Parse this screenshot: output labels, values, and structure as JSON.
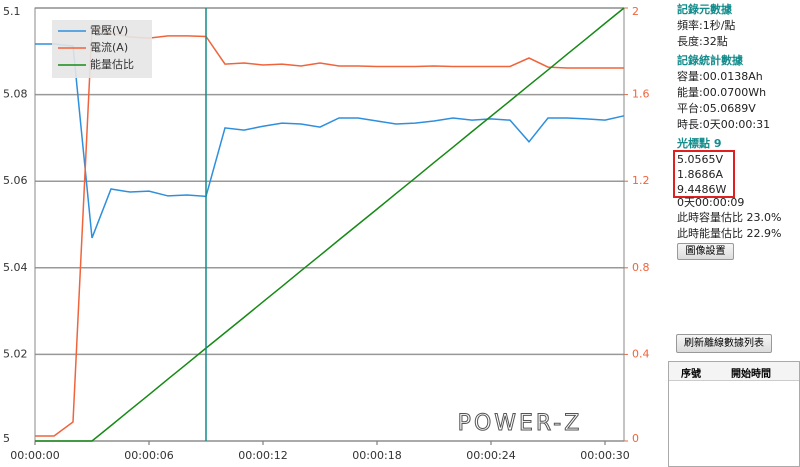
{
  "chart_data": {
    "type": "line",
    "x": [
      0,
      1,
      2,
      3,
      4,
      5,
      6,
      7,
      8,
      9,
      10,
      11,
      12,
      13,
      14,
      15,
      16,
      17,
      18,
      19,
      20,
      21,
      22,
      23,
      24,
      25,
      26,
      27,
      28,
      29,
      30,
      31
    ],
    "xlim": [
      0,
      31
    ],
    "xticks": [
      {
        "value": 0,
        "label": "00:00:00"
      },
      {
        "value": 6,
        "label": "00:00:06"
      },
      {
        "value": 12,
        "label": "00:00:12"
      },
      {
        "value": 18,
        "label": "00:00:18"
      },
      {
        "value": 24,
        "label": "00:00:24"
      },
      {
        "value": 30,
        "label": "00:00:30"
      }
    ],
    "ylim": [
      5,
      5.1
    ],
    "yticks": [
      5,
      5.02,
      5.04,
      5.06,
      5.08,
      5.1
    ],
    "y2lim": [
      0,
      2
    ],
    "y2ticks": [
      0,
      0.4,
      0.8,
      1.2,
      1.6,
      2
    ],
    "grid": true,
    "legend": "top-left",
    "series": [
      {
        "name": "電壓(V)",
        "color": "#2f8fdc",
        "values": [
          5.0917,
          5.0917,
          5.0912,
          5.0469,
          5.0582,
          5.0575,
          5.0577,
          5.0566,
          5.0568,
          5.0565,
          5.0723,
          5.0718,
          5.0727,
          5.0734,
          5.0732,
          5.0725,
          5.0746,
          5.0746,
          5.0739,
          5.0732,
          5.0734,
          5.0739,
          5.0746,
          5.0741,
          5.0744,
          5.0741,
          5.0691,
          5.0746,
          5.0746,
          5.0744,
          5.0741,
          5.0751
        ]
      },
      {
        "name": "電流(A)",
        "color": "#f0643c",
        "axis": "y2",
        "values": [
          0.023,
          0.023,
          0.088,
          1.908,
          1.885,
          1.866,
          1.861,
          1.871,
          1.871,
          1.8686,
          1.741,
          1.746,
          1.737,
          1.741,
          1.732,
          1.746,
          1.732,
          1.732,
          1.73,
          1.73,
          1.73,
          1.732,
          1.73,
          1.73,
          1.73,
          1.73,
          1.769,
          1.727,
          1.723,
          1.723,
          1.723,
          1.723
        ]
      },
      {
        "name": "能量估比",
        "color": "#168a16",
        "axis": "y2",
        "values": [
          0,
          0,
          0,
          0,
          0.071,
          0.143,
          0.214,
          0.286,
          0.357,
          0.429,
          0.5,
          0.571,
          0.643,
          0.714,
          0.786,
          0.857,
          0.929,
          1.0,
          1.071,
          1.143,
          1.214,
          1.286,
          1.357,
          1.429,
          1.5,
          1.571,
          1.643,
          1.714,
          1.786,
          1.857,
          1.929,
          2.0
        ]
      }
    ],
    "cursor_x": 9,
    "cursor_color": "#128c8c",
    "watermark": "POWER-Z"
  },
  "panel": {
    "meta_title": "記錄元數據",
    "freq": "頻率:1秒/點",
    "length": "長度:32點",
    "stats_title": "記錄統計數據",
    "capacity": "容量:00.0138Ah",
    "energy": "能量:00.0700Wh",
    "plateau": "平台:05.0689V",
    "duration": "時長:0天00:00:31",
    "cursor_title": "光標點 9",
    "cursor_voltage": "5.0565V",
    "cursor_current": "1.8686A",
    "cursor_power": "9.4486W",
    "cursor_time": "0天00:00:09",
    "cap_ratio": "此時容量估比 23.0%",
    "energy_ratio": "此時能量估比 22.9%",
    "image_button": "圖像設置",
    "refresh_button": "刷新離線數據列表",
    "table_headers": [
      "序號",
      "開始時間"
    ]
  }
}
